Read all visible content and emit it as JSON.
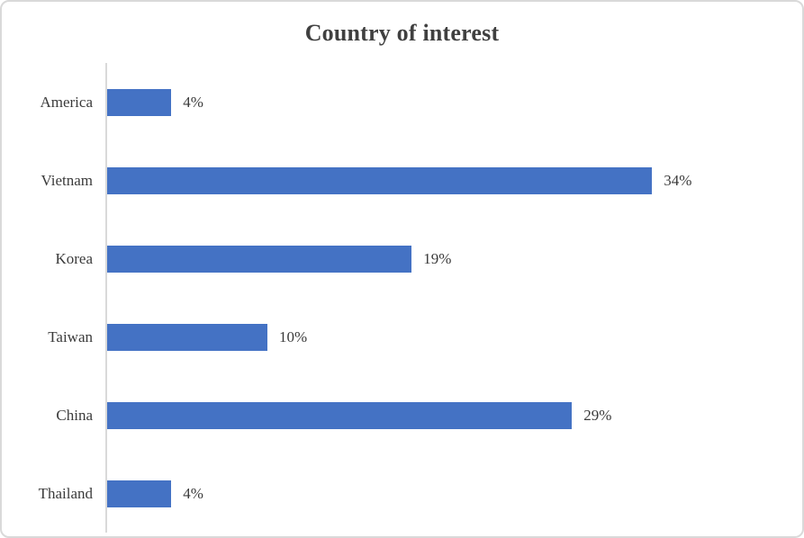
{
  "chart_data": {
    "type": "bar",
    "orientation": "horizontal",
    "title": "Country of interest",
    "categories": [
      "America",
      "Vietnam",
      "Korea",
      "Taiwan",
      "China",
      "Thailand"
    ],
    "values": [
      4,
      34,
      19,
      10,
      29,
      4
    ],
    "value_labels": [
      "4%",
      "34%",
      "19%",
      "10%",
      "29%",
      "4%"
    ],
    "xlabel": "",
    "ylabel": "",
    "xlim": [
      0,
      40
    ],
    "grid": false,
    "legend": "none",
    "colors": {
      "bar": "#4472C4",
      "axis_line": "#D9D9D9",
      "frame_border": "#D9D9D9",
      "title_text": "#404040",
      "label_text": "#3B3B3B",
      "background": "#FFFFFF"
    }
  }
}
